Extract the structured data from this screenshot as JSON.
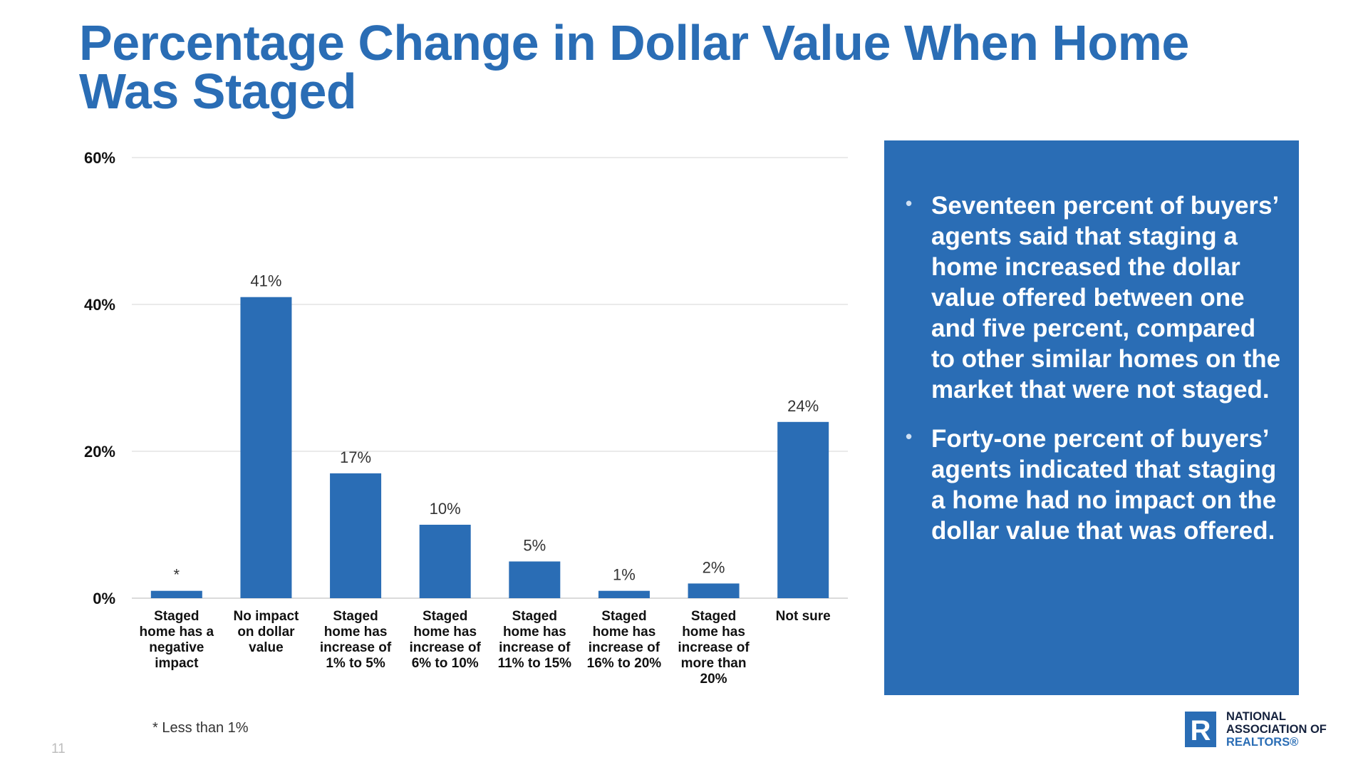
{
  "slide": {
    "title": "Percentage Change in Dollar Value When Home Was Staged",
    "page_number": "11",
    "footnote": "* Less than 1%",
    "accent_color": "#2a6db5"
  },
  "chart_data": {
    "type": "bar",
    "categories": [
      [
        "Staged",
        "home has a",
        "negative",
        "impact"
      ],
      [
        "No impact",
        "on dollar",
        "value"
      ],
      [
        "Staged",
        "home has",
        "increase of",
        "1% to 5%"
      ],
      [
        "Staged",
        "home has",
        "increase of",
        "6% to 10%"
      ],
      [
        "Staged",
        "home has",
        "increase of",
        "11% to 15%"
      ],
      [
        "Staged",
        "home has",
        "increase of",
        "16% to 20%"
      ],
      [
        "Staged",
        "home has",
        "increase of",
        "more than",
        "20%"
      ],
      [
        "Not sure"
      ]
    ],
    "values": [
      1,
      41,
      17,
      10,
      5,
      1,
      2,
      24
    ],
    "data_labels": [
      "*",
      "41%",
      "17%",
      "10%",
      "5%",
      "1%",
      "2%",
      "24%"
    ],
    "y_ticks": [
      0,
      20,
      40,
      60
    ],
    "y_tick_labels": [
      "0%",
      "20%",
      "40%",
      "60%"
    ],
    "ylim": [
      0,
      60
    ],
    "grid": true,
    "legend": "none",
    "bar_color": "#2a6db5"
  },
  "callout": {
    "bullets": [
      "Seventeen percent of buyers’ agents said that staging a home increased the dollar value offered between one and five percent, compared to other similar homes on the market that were not staged.",
      "Forty-one percent of buyers’ agents indicated that staging a home had no impact on the dollar value that was offered."
    ],
    "bullet_glyph": "•"
  },
  "logo": {
    "mark": "R",
    "line1": "NATIONAL",
    "line2": "ASSOCIATION OF",
    "line3": "REALTORS®"
  }
}
